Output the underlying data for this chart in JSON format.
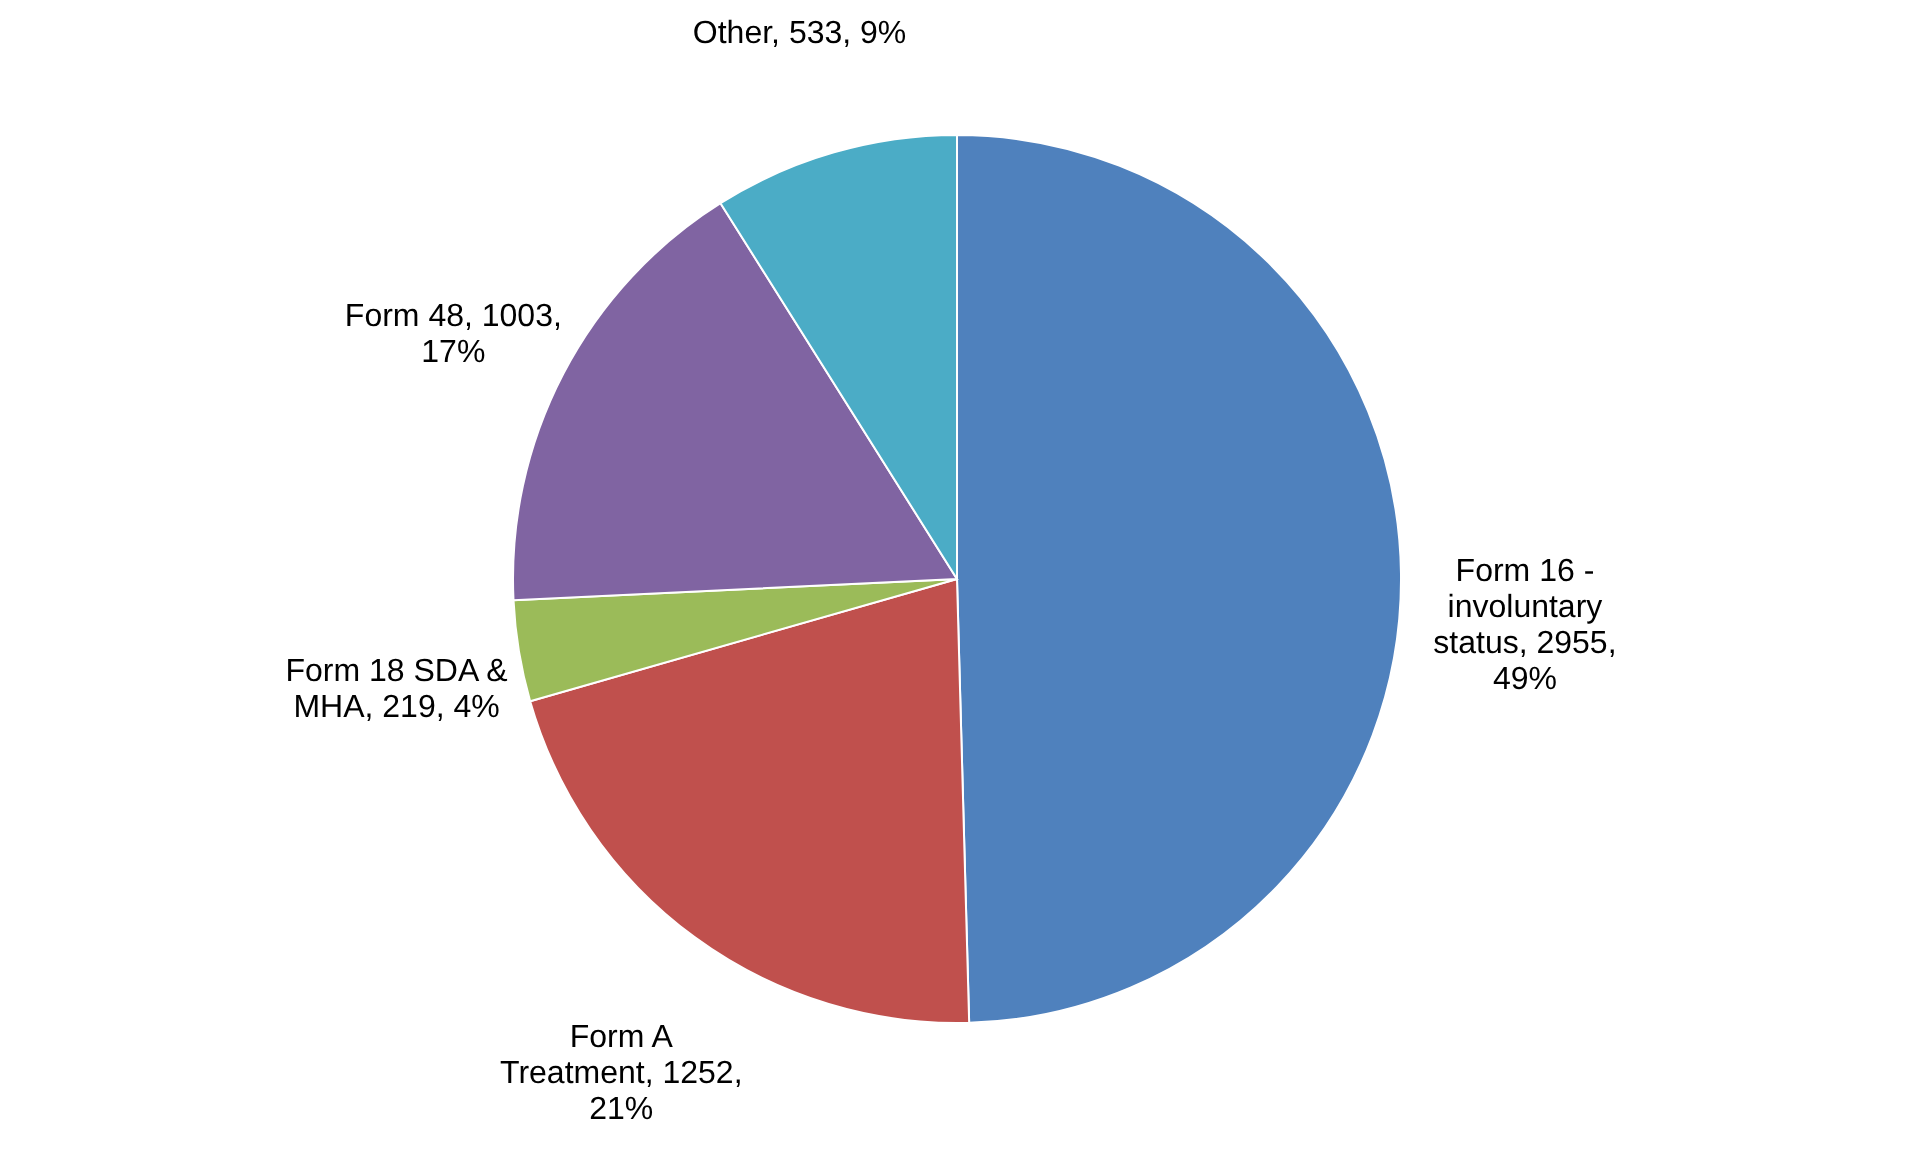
{
  "chart_data": {
    "type": "pie",
    "categories": [
      "Form 16 - involuntary status",
      "Form A Treatment",
      "Form 18 SDA & MHA",
      "Form 48",
      "Other"
    ],
    "values": [
      2955,
      1252,
      219,
      1003,
      533
    ],
    "value_labels": [
      "2955, 49%",
      "1252, 21%",
      "219, 4%",
      "1003, 17%",
      "533, 9%"
    ],
    "colors": [
      "#4f81bd",
      "#c0504d",
      "#9bbb59",
      "#8064a2",
      "#4bacc6"
    ]
  }
}
